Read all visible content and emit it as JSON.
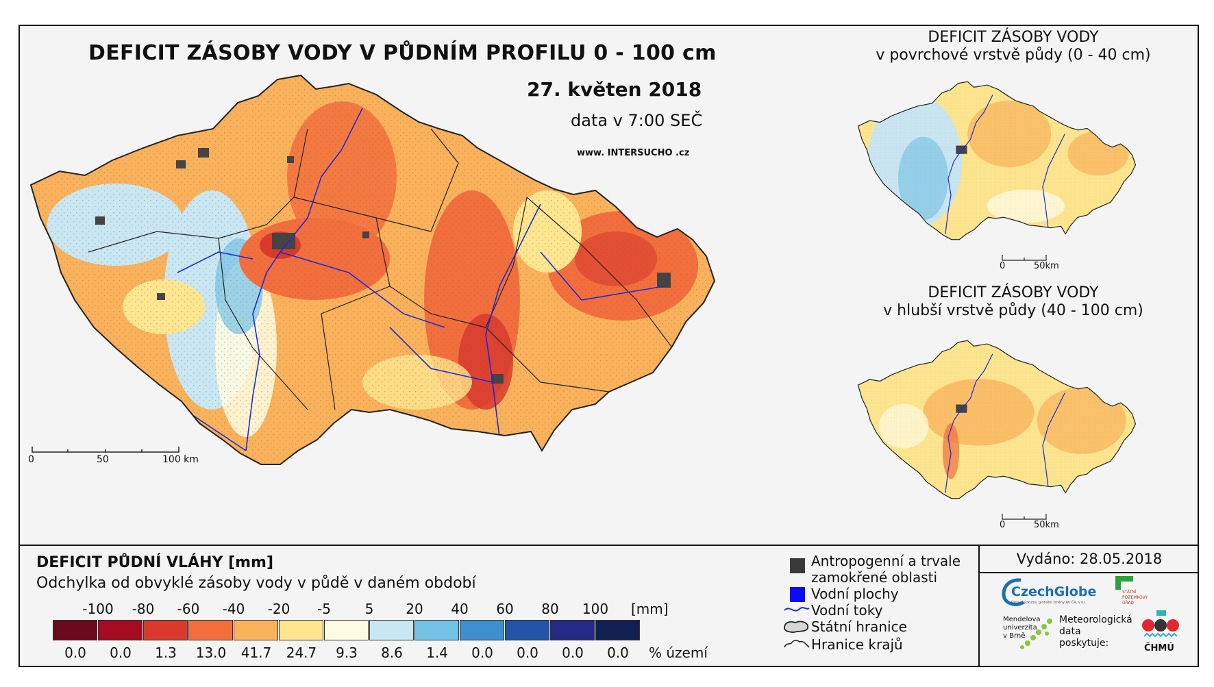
{
  "main_map": {
    "title": "DEFICIT ZÁSOBY VODY V PŮDNÍM PROFILU 0 - 100 cm",
    "date": "27. květen 2018",
    "time": "data v 7:00 SEČ",
    "website": "www. INTERSUCHO .cz",
    "scale_labels": [
      "0",
      "50",
      "100 km"
    ]
  },
  "inset_top": {
    "title_line1": "DEFICIT ZÁSOBY VODY",
    "title_line2": "v povrchové vrstvě půdy (0 - 40 cm)",
    "scale_labels": [
      "0",
      "50km"
    ]
  },
  "inset_bottom": {
    "title_line1": "DEFICIT ZÁSOBY VODY",
    "title_line2": "v hlubší vrstvě půdy (40 - 100 cm)",
    "scale_labels": [
      "0",
      "50km"
    ]
  },
  "legend": {
    "title": "DEFICIT PŮDNÍ VLÁHY [mm]",
    "subtitle": "Odchylka od obvyklé zásoby vody v půdě v daném období",
    "class_labels": [
      "-100",
      "-80",
      "-60",
      "-40",
      "-20",
      "-5",
      "5",
      "20",
      "40",
      "60",
      "80",
      "100"
    ],
    "unit": "[mm]",
    "colors": [
      "#6b0a1e",
      "#a50c22",
      "#d93a2e",
      "#f26e3d",
      "#f9b25b",
      "#fde68f",
      "#fffbe2",
      "#c9e6f3",
      "#73c2e6",
      "#3f8fce",
      "#2354a8",
      "#232a86",
      "#102050"
    ],
    "percentages": [
      "0.0",
      "0.0",
      "1.3",
      "13.0",
      "41.7",
      "24.7",
      "9.3",
      "8.6",
      "1.4",
      "0.0",
      "0.0",
      "0.0",
      "0.0"
    ],
    "percent_unit": "% území"
  },
  "map_key": {
    "anthropogenic_line1": "Antropogenní a trvale",
    "anthropogenic_line2": "zamokřené oblasti",
    "water_bodies": "Vodní plochy",
    "rivers": "Vodní toky",
    "state_border": "Státní hranice",
    "region_border": "Hranice krajů"
  },
  "issued": "Vydáno: 28.05.2018",
  "logos": {
    "czechglobe": "CzechGlobe",
    "czechglobe_sub": "Ústav výzkumu globální změny AV ČR, v.v.i.",
    "spu_line1": "STÁTNÍ",
    "spu_line2": "POZEMKOVÝ",
    "spu_line3": "ÚŘAD",
    "mendel_line1": "Mendelova",
    "mendel_line2": "univerzita",
    "mendel_line3": "v Brně",
    "meteo_line1": "Meteorologická",
    "meteo_line2": "data",
    "meteo_line3": "poskytuje:",
    "chmu": "ČHMÚ"
  }
}
